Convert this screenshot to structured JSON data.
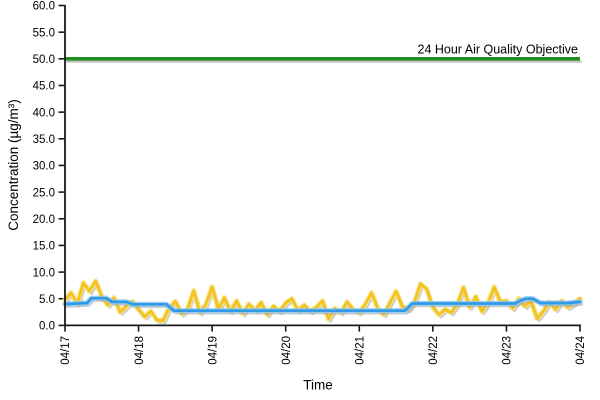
{
  "chart_data": {
    "type": "line",
    "title": "",
    "xlabel": "Time",
    "ylabel": "Concentration (µg/m³)",
    "ylim": [
      0,
      60
    ],
    "ytick_step": 5,
    "ytick_labels": [
      "0.0",
      "5.0",
      "10.0",
      "15.0",
      "20.0",
      "25.0",
      "30.0",
      "35.0",
      "40.0",
      "45.0",
      "50.0",
      "55.0",
      "60.0"
    ],
    "xtick_labels": [
      "04/17",
      "04/18",
      "04/19",
      "04/20",
      "04/21",
      "04/22",
      "04/23",
      "04/24"
    ],
    "x_axis_note": "x in days after 04/17 00:00, range 0 to 7",
    "grid": false,
    "legend": "none",
    "reference_line": {
      "value": 50,
      "label": "24 Hour Air Quality Objective",
      "color": "#1e8c1e",
      "shadow_color": "#a8a8a8"
    },
    "series": [
      {
        "name": "hourly-concentration-yellow-line",
        "color": "#f2c31f",
        "halo_color": "#f9e07e",
        "x_start_days": 0,
        "x_step_days": 0.0833333,
        "values": [
          4.8,
          6.1,
          4.1,
          8.0,
          6.4,
          8.3,
          5.4,
          3.8,
          5.2,
          2.5,
          3.6,
          4.5,
          3.0,
          1.6,
          2.7,
          1.0,
          0.9,
          3.3,
          4.5,
          2.2,
          3.1,
          6.5,
          2.4,
          4.0,
          7.2,
          3.0,
          5.2,
          2.6,
          4.6,
          2.2,
          4.0,
          2.8,
          4.3,
          2.0,
          3.6,
          2.6,
          4.2,
          5.0,
          2.8,
          3.8,
          2.6,
          3.4,
          4.6,
          1.2,
          3.2,
          2.4,
          4.4,
          3.0,
          2.4,
          4.0,
          6.1,
          3.2,
          2.0,
          4.2,
          6.4,
          3.6,
          3.0,
          4.4,
          7.8,
          6.8,
          3.4,
          2.0,
          3.0,
          2.4,
          4.0,
          7.1,
          3.4,
          5.4,
          2.6,
          4.2,
          7.2,
          4.4,
          4.6,
          3.2,
          5.0,
          3.6,
          4.6,
          1.3,
          2.6,
          4.4,
          3.0,
          4.6,
          3.4,
          4.2,
          5.0
        ]
      },
      {
        "name": "running-average-concentration-blue-line",
        "color": "#2f9be8",
        "halo_color": "#93c9f0",
        "points": [
          [
            0,
            4.0
          ],
          [
            0.3,
            4.2
          ],
          [
            0.36,
            5.1
          ],
          [
            0.56,
            5.1
          ],
          [
            0.64,
            4.4
          ],
          [
            0.84,
            4.4
          ],
          [
            0.92,
            3.95
          ],
          [
            1.38,
            3.95
          ],
          [
            1.48,
            2.75
          ],
          [
            4.62,
            2.75
          ],
          [
            4.72,
            4.1
          ],
          [
            6.12,
            4.1
          ],
          [
            6.2,
            4.7
          ],
          [
            6.27,
            5.0
          ],
          [
            6.36,
            5.0
          ],
          [
            6.46,
            4.2
          ],
          [
            6.85,
            4.2
          ],
          [
            7,
            4.4
          ]
        ]
      }
    ],
    "colors": {
      "axis": "#1a1a1a",
      "background": "#ffffff",
      "shadow": "#9b9b9b"
    }
  }
}
